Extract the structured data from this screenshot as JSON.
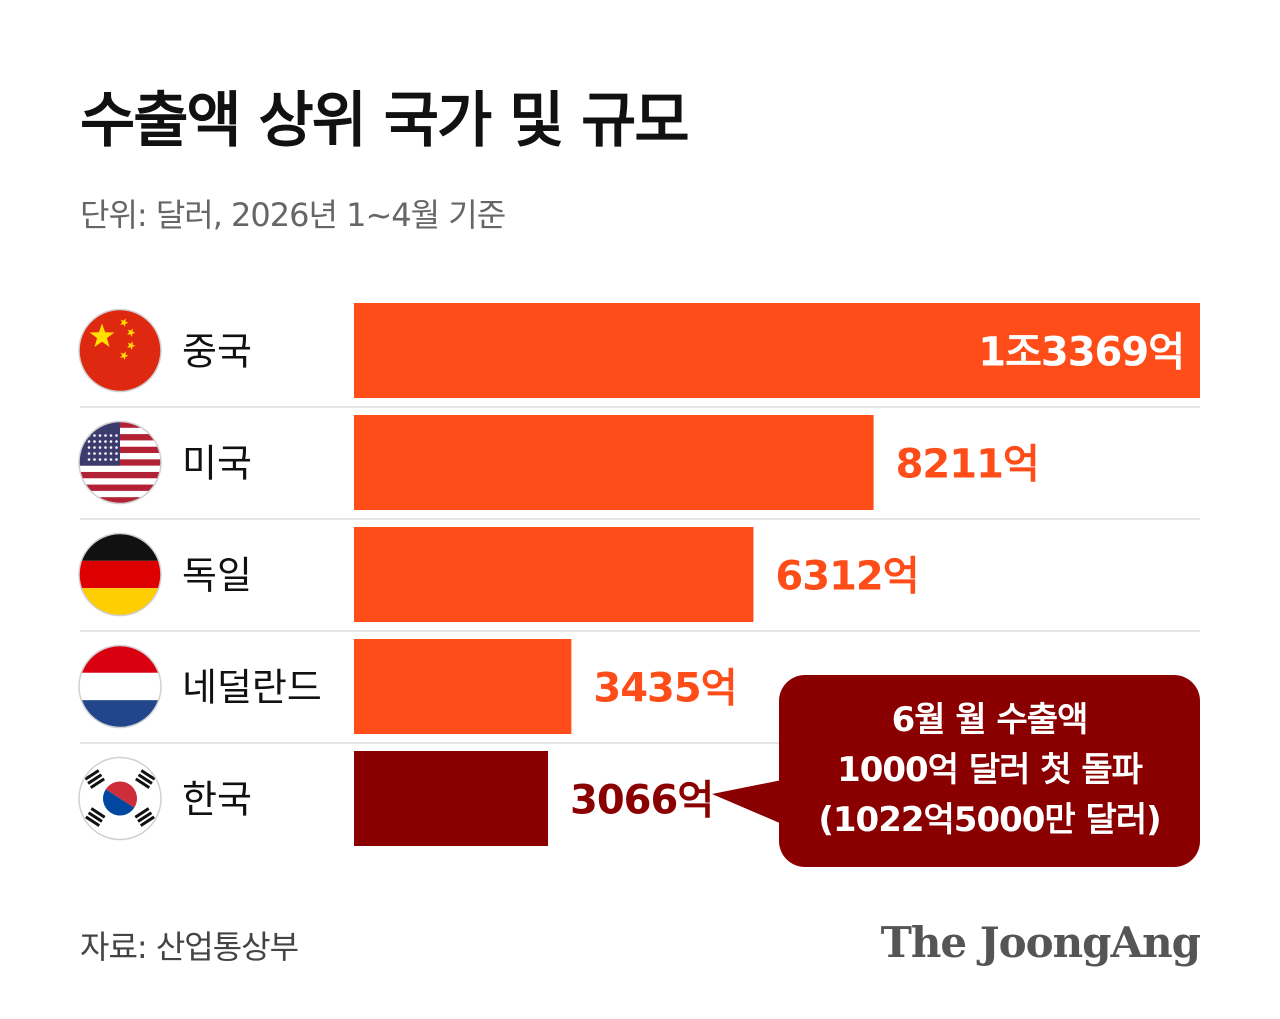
{
  "title": "수출액 상위 국가 및 규모",
  "subtitle": "단위: 달러, 2026년 1~4월 기준",
  "source": "자료: 산업통상부",
  "logo": "The JoongAng",
  "callout": {
    "line1": "6월 월 수출액",
    "line2": "1000억 달러 첫 돌파",
    "line3": "(1022억5000만 달러)"
  },
  "colors": {
    "bar": "#ff4d1a",
    "highlight": "#8a0000",
    "separator": "#dddddd"
  },
  "chart_data": {
    "type": "bar",
    "orientation": "horizontal",
    "categories": [
      "중국",
      "미국",
      "독일",
      "네덜란드",
      "한국"
    ],
    "values": [
      13369,
      8211,
      6312,
      3435,
      3066
    ],
    "value_labels": [
      "1조3369억",
      "8211억",
      "6312억",
      "3435억",
      "3066억"
    ],
    "flags": [
      "china-flag-icon",
      "usa-flag-icon",
      "germany-flag-icon",
      "netherlands-flag-icon",
      "korea-flag-icon"
    ],
    "highlight_index": 4,
    "xlim": [
      0,
      13369
    ]
  }
}
